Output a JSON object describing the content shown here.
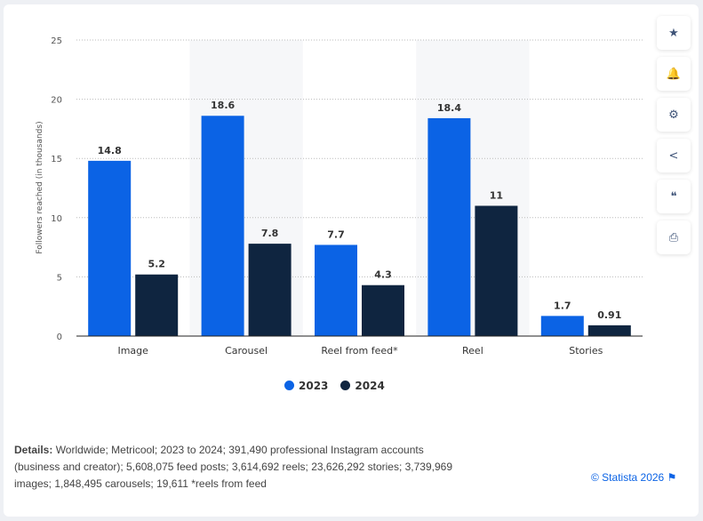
{
  "chart_data": {
    "type": "bar",
    "categories": [
      "Image",
      "Carousel",
      "Reel from feed*",
      "Reel",
      "Stories"
    ],
    "series": [
      {
        "name": "2023",
        "color": "#0b63e5",
        "values": [
          14.8,
          18.6,
          7.7,
          18.4,
          1.7
        ]
      },
      {
        "name": "2024",
        "color": "#0f2540",
        "values": [
          5.2,
          7.8,
          4.3,
          11,
          0.91
        ]
      }
    ],
    "data_labels": [
      [
        "14.8",
        "18.6",
        "7.7",
        "18.4",
        "1.7"
      ],
      [
        "5.2",
        "7.8",
        "4.3",
        "11",
        "0.91"
      ]
    ],
    "ylabel": "Followers reached (in thousands)",
    "ylim": [
      0,
      25
    ],
    "yticks": [
      0,
      5,
      10,
      15,
      20,
      25
    ],
    "grid": true,
    "legend": "bottom"
  },
  "details": {
    "label": "Details:",
    "text": " Worldwide; Metricool; 2023 to 2024; 391,490 professional Instagram accounts (business and creator); 5,608,075 feed posts; 3,614,692 reels; 23,626,292 stories; 3,739,969 images; 1,848,495 carousels; 19,611 *reels from feed"
  },
  "copyright": "© Statista 2026",
  "sidebar": [
    {
      "icon": "star-icon",
      "glyph": "★"
    },
    {
      "icon": "bell-icon",
      "glyph": "🔔"
    },
    {
      "icon": "gear-icon",
      "glyph": "⚙"
    },
    {
      "icon": "share-icon",
      "glyph": "<"
    },
    {
      "icon": "quote-icon",
      "glyph": "❝"
    },
    {
      "icon": "print-icon",
      "glyph": "⎙"
    }
  ]
}
